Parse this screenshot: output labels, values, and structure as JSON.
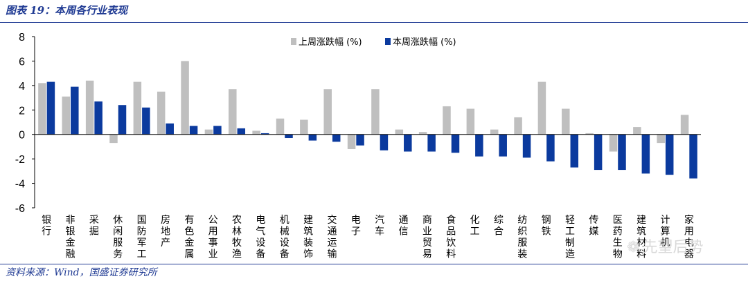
{
  "header": {
    "title": "图表 19：本周各行业表现"
  },
  "footer": {
    "source": "资料来源：Wind，国盛证券研究所"
  },
  "watermark": {
    "text": "先望后势"
  },
  "chart_data": {
    "type": "bar",
    "title": "图表 19：本周各行业表现",
    "xlabel": "",
    "ylabel": "",
    "ylim": [
      -6,
      8
    ],
    "yticks": [
      8,
      6,
      4,
      2,
      0,
      -2,
      -4,
      -6
    ],
    "grid": false,
    "legend_position": "top-right",
    "categories": [
      "银行",
      "非银金融",
      "采掘",
      "休闲服务",
      "国防军工",
      "房地产",
      "有色金属",
      "公用事业",
      "农林牧渔",
      "电气设备",
      "机械设备",
      "建筑装饰",
      "交通运输",
      "电子",
      "汽车",
      "通信",
      "商业贸易",
      "食品饮料",
      "化工",
      "综合",
      "纺织服装",
      "钢铁",
      "轻工制造",
      "传媒",
      "医药生物",
      "建筑材料",
      "计算机",
      "家用电器"
    ],
    "series": [
      {
        "name": "上周涨跌幅 (%)",
        "color": "#bfbfbf",
        "values": [
          4.2,
          3.1,
          4.4,
          -0.7,
          4.3,
          3.5,
          6.0,
          0.4,
          3.7,
          0.3,
          1.3,
          1.2,
          3.7,
          -1.2,
          3.7,
          0.4,
          0.2,
          2.3,
          2.1,
          0.4,
          1.4,
          4.3,
          2.1,
          0.1,
          -1.4,
          0.6,
          -0.7,
          1.6
        ]
      },
      {
        "name": "本周涨跌幅 (%)",
        "color": "#0b3a9e",
        "values": [
          4.3,
          3.9,
          2.7,
          2.4,
          2.2,
          0.9,
          0.7,
          0.7,
          0.5,
          0.1,
          -0.3,
          -0.5,
          -0.6,
          -0.9,
          -1.3,
          -1.4,
          -1.4,
          -1.5,
          -1.8,
          -1.8,
          -1.9,
          -2.2,
          -2.7,
          -2.9,
          -2.9,
          -3.2,
          -3.3,
          -3.6
        ]
      }
    ]
  }
}
